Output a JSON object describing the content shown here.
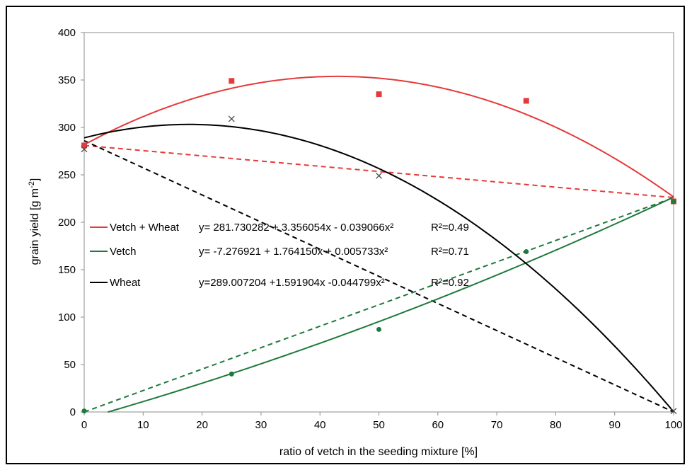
{
  "chart_data": {
    "type": "scatter",
    "xlabel": "ratio of vetch in the seeding mixture [%]",
    "ylabel": "grain yield [g m-2]",
    "xlim": [
      0,
      100
    ],
    "ylim": [
      0,
      400
    ],
    "x_ticks": [
      0,
      10,
      20,
      30,
      40,
      50,
      60,
      70,
      80,
      90,
      100
    ],
    "y_ticks": [
      0,
      50,
      100,
      150,
      200,
      250,
      300,
      350,
      400
    ],
    "grid": false,
    "series": [
      {
        "name": "Vetch + Wheat",
        "color": "#e53a3a",
        "marker": "square",
        "points": [
          [
            0,
            281
          ],
          [
            25,
            349
          ],
          [
            50,
            335
          ],
          [
            75,
            328
          ],
          [
            100,
            222
          ]
        ],
        "fit": {
          "a": 281.730282,
          "b": 3.356054,
          "c": -0.039066
        },
        "reference_line": [
          [
            0,
            281
          ],
          [
            100,
            226
          ]
        ],
        "equation": "y= 281.730282 + 3.356054x - 0.039066x²",
        "r2": "R²=0.49"
      },
      {
        "name": "Vetch",
        "color": "#1d7a3c",
        "marker": "circle",
        "points": [
          [
            0,
            1
          ],
          [
            25,
            40
          ],
          [
            50,
            87
          ],
          [
            75,
            169
          ],
          [
            100,
            222
          ]
        ],
        "fit": {
          "a": -7.276921,
          "b": 1.76415,
          "c": 0.005733
        },
        "reference_line": [
          [
            0,
            0
          ],
          [
            100,
            226
          ]
        ],
        "equation": "y= -7.276921 + 1.764150x + 0.005733x²",
        "r2": "R²=0.71"
      },
      {
        "name": "Wheat",
        "color": "#000000",
        "marker": "x",
        "points": [
          [
            0,
            277
          ],
          [
            25,
            309
          ],
          [
            50,
            249
          ],
          [
            100,
            1
          ]
        ],
        "fit": {
          "a": 289.007204,
          "b": 1.591904,
          "c": -0.044799
        },
        "reference_line": [
          [
            0,
            286
          ],
          [
            100,
            0
          ]
        ],
        "equation": "y=289.007204 +1.591904x -0.044799x²",
        "r2": "R²=0.92"
      }
    ]
  }
}
